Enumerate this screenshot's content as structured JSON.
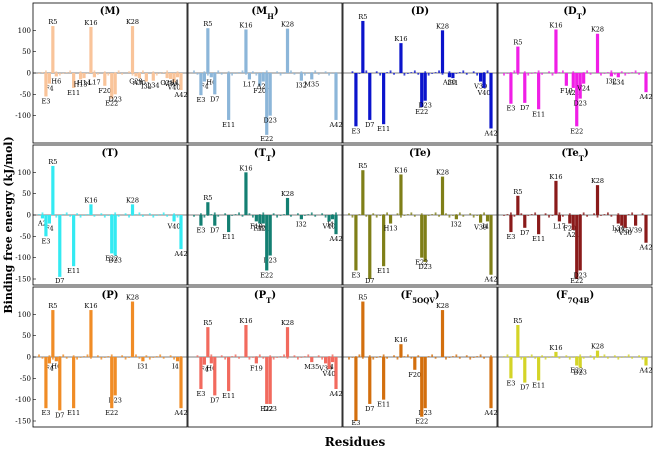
{
  "figure": {
    "ylabel": "Binding free energy (kJ/mol)",
    "xlabel": "Residues"
  },
  "chart_data": [
    {
      "type": "bar",
      "title": "(M)",
      "color": "#f9c49a",
      "ylim": [
        -150,
        150
      ],
      "yticks": [
        -100,
        -50,
        0,
        50,
        100
      ],
      "categories": [
        "F4",
        "R5",
        "H6",
        "E3",
        "E11",
        "H13",
        "H14",
        "K16",
        "L17",
        "F20",
        "E22",
        "D23",
        "K28",
        "G29",
        "A30",
        "I32",
        "L34",
        "G38",
        "V39",
        "V40",
        "I41",
        "A42"
      ],
      "values": [
        -25,
        110,
        -8,
        -55,
        -35,
        -15,
        -12,
        108,
        -10,
        -30,
        -60,
        -50,
        110,
        -8,
        -12,
        -20,
        -18,
        -12,
        -14,
        -22,
        -10,
        -40
      ],
      "labels": [
        "F4",
        "R5",
        "H6",
        "E3",
        "E11",
        "H13",
        "H14",
        "K16",
        "L17",
        "F20",
        "E22",
        "D23",
        "K28",
        "G29",
        "A30",
        "I32",
        "L34",
        "G38",
        "V39",
        "V40",
        "I41",
        "A42"
      ]
    },
    {
      "type": "bar",
      "title": "(M_H)",
      "color": "#8cb6d9",
      "ylim": [
        -150,
        150
      ],
      "yticks": [
        -150,
        -100,
        -50,
        0,
        50,
        100
      ],
      "categories": [
        "F4",
        "R5",
        "H6",
        "E3",
        "D7",
        "E11",
        "K16",
        "L17",
        "F20",
        "A21",
        "E22",
        "D23",
        "K28",
        "I32",
        "M35",
        "A42"
      ],
      "values": [
        -20,
        105,
        -10,
        -52,
        -50,
        -110,
        102,
        -15,
        -30,
        -20,
        -145,
        -100,
        104,
        -18,
        -15,
        -110
      ],
      "labels": [
        "F4",
        "R5",
        "H6",
        "E3",
        "D7",
        "E11",
        "K16",
        "L17",
        "F20",
        "A21",
        "E22",
        "D23",
        "K28",
        "I32",
        "M35",
        "A42"
      ]
    },
    {
      "type": "bar",
      "title": "(D)",
      "color": "#0b14cc",
      "ylim": [
        -150,
        150
      ],
      "yticks": [
        -150,
        -100,
        -50,
        0,
        50,
        100
      ],
      "categories": [
        "R5",
        "E3",
        "D7",
        "E11",
        "K16",
        "E22",
        "D23",
        "K28",
        "A30",
        "I31",
        "V39",
        "V40",
        "A42"
      ],
      "values": [
        122,
        -125,
        -110,
        -120,
        70,
        -80,
        -65,
        100,
        -10,
        -12,
        -20,
        -35,
        -130
      ],
      "labels": [
        "R5",
        "E3",
        "D7",
        "E11",
        "K16",
        "E22",
        "D23",
        "K28",
        "A30",
        "I31",
        "V39",
        "V40",
        "A42"
      ]
    },
    {
      "type": "bar",
      "title": "(D_T)",
      "color": "#f01ee6",
      "ylim": [
        -150,
        150
      ],
      "yticks": [
        -150,
        -100,
        -50,
        0,
        50,
        100
      ],
      "categories": [
        "R5",
        "E3",
        "D7",
        "E11",
        "K16",
        "F19",
        "A21",
        "E22",
        "D23",
        "V24",
        "K28",
        "I32",
        "L34",
        "A42"
      ],
      "values": [
        62,
        -72,
        -70,
        -85,
        102,
        -30,
        -35,
        -125,
        -60,
        -25,
        92,
        -8,
        -10,
        -45
      ],
      "labels": [
        "R5",
        "E3",
        "D7",
        "E11",
        "K16",
        "F19",
        "A21",
        "E22",
        "D23",
        "V24",
        "K28",
        "I32",
        "L34",
        "A42"
      ]
    },
    {
      "type": "bar",
      "title": "(T)",
      "color": "#33eaf2",
      "ylim": [
        -150,
        150
      ],
      "yticks": [
        -150,
        -100,
        -50,
        0,
        50,
        100
      ],
      "categories": [
        "A2",
        "R5",
        "F4",
        "E3",
        "D7",
        "E11",
        "K16",
        "E22",
        "D23",
        "K28",
        "V40",
        "A42"
      ],
      "values": [
        -8,
        115,
        -20,
        -50,
        -145,
        -120,
        25,
        -90,
        -95,
        25,
        -15,
        -80
      ],
      "labels": [
        "A2",
        "R5",
        "F4",
        "E3",
        "D7",
        "E11",
        "K16",
        "E22",
        "D23",
        "K28",
        "V40",
        "A42"
      ]
    },
    {
      "type": "bar",
      "title": "(T_T)",
      "color": "#137f72",
      "ylim": [
        -150,
        150
      ],
      "yticks": [
        -150,
        -100,
        -50,
        0,
        50,
        100
      ],
      "categories": [
        "R5",
        "E3",
        "D7",
        "E11",
        "K16",
        "F19",
        "F20",
        "A21",
        "D23",
        "E22",
        "K28",
        "I32",
        "V40",
        "I41",
        "A42"
      ],
      "values": [
        30,
        -25,
        -25,
        -40,
        100,
        -15,
        -20,
        -20,
        -95,
        -130,
        40,
        -10,
        -15,
        -10,
        -45
      ],
      "labels": [
        "R5",
        "E3",
        "D7",
        "E11",
        "K16",
        "F19",
        "F20",
        "A21",
        "D23",
        "E22",
        "K28",
        "I32",
        "V40",
        "I41",
        "A42"
      ]
    },
    {
      "type": "bar",
      "title": "(Te)",
      "color": "#7f7f18",
      "ylim": [
        -150,
        150
      ],
      "yticks": [
        -150,
        -100,
        -50,
        0,
        50,
        100
      ],
      "categories": [
        "R5",
        "E3",
        "D7",
        "E11",
        "H13",
        "K16",
        "D23",
        "E22",
        "K28",
        "I32",
        "V39",
        "I41",
        "A42"
      ],
      "values": [
        105,
        -130,
        -150,
        -120,
        -20,
        95,
        -110,
        -100,
        90,
        -10,
        -18,
        -15,
        -140
      ],
      "labels": [
        "R5",
        "E3",
        "D7",
        "E11",
        "H13",
        "K16",
        "D23",
        "E22",
        "K28",
        "I32",
        "V39",
        "I41",
        "A42"
      ]
    },
    {
      "type": "bar",
      "title": "(Te_T)",
      "color": "#8a1a1a",
      "ylim": [
        -150,
        150
      ],
      "yticks": [
        -150,
        -100,
        -50,
        0,
        50,
        100
      ],
      "categories": [
        "R5",
        "E3",
        "D7",
        "E11",
        "K16",
        "L17",
        "F20",
        "A21",
        "E22",
        "D23",
        "K28",
        "L34",
        "M35",
        "V36",
        "V39",
        "A42"
      ],
      "values": [
        45,
        -40,
        -30,
        -45,
        80,
        -15,
        -20,
        -35,
        -150,
        -130,
        70,
        -20,
        -25,
        -30,
        -25,
        -65
      ],
      "labels": [
        "R5",
        "E3",
        "D7",
        "E11",
        "K16",
        "L17",
        "F20",
        "A21",
        "E22",
        "D23",
        "K28",
        "L34",
        "M35",
        "V36",
        "V39",
        "A42"
      ]
    },
    {
      "type": "bar",
      "title": "(P)",
      "color": "#f08c26",
      "ylim": [
        -150,
        150
      ],
      "yticks": [
        -150,
        -100,
        -50,
        0,
        50,
        100
      ],
      "categories": [
        "F4",
        "R5",
        "H6",
        "E3",
        "D7",
        "E11",
        "K16",
        "D23",
        "E22",
        "K28",
        "I31",
        "I41",
        "A42"
      ],
      "values": [
        -15,
        110,
        -10,
        -120,
        -125,
        -120,
        110,
        -90,
        -120,
        130,
        -10,
        -10,
        -120
      ],
      "labels": [
        "F4",
        "R5",
        "H6",
        "E3",
        "D7",
        "E11",
        "K16",
        "D23",
        "E22",
        "K28",
        "I31",
        "I41",
        "A42"
      ]
    },
    {
      "type": "bar",
      "title": "(P_T)",
      "color": "#f26a5e",
      "ylim": [
        -150,
        150
      ],
      "yticks": [
        -150,
        -100,
        -50,
        0,
        50,
        100
      ],
      "categories": [
        "R5",
        "F4",
        "H6",
        "E3",
        "D7",
        "E11",
        "K16",
        "F19",
        "E22",
        "D23",
        "K28",
        "M35",
        "V39",
        "I41",
        "V40",
        "A42"
      ],
      "values": [
        70,
        -18,
        -15,
        -75,
        -90,
        -80,
        75,
        -15,
        -110,
        -110,
        70,
        -12,
        -15,
        -12,
        -28,
        -75
      ],
      "labels": [
        "R5",
        "F4",
        "H6",
        "E3",
        "D7",
        "E11",
        "K16",
        "F19",
        "E22",
        "D23",
        "K28",
        "M35",
        "V39",
        "I41",
        "V40",
        "A42"
      ]
    },
    {
      "type": "bar",
      "title": "(F_5OQV)",
      "color": "#d36f0e",
      "ylim": [
        -150,
        150
      ],
      "yticks": [
        -150,
        -100,
        -50,
        0,
        50,
        100
      ],
      "categories": [
        "E3",
        "R5",
        "D7",
        "E11",
        "K16",
        "F20",
        "D23",
        "E22",
        "K28",
        "A42"
      ],
      "values": [
        -150,
        130,
        -110,
        -100,
        30,
        -30,
        -120,
        -140,
        110,
        -120
      ],
      "labels": [
        "E3",
        "R5",
        "D7",
        "E11",
        "K16",
        "F20",
        "D23",
        "E22",
        "K28",
        "A42"
      ]
    },
    {
      "type": "bar",
      "title": "(F_7Q4B)",
      "color": "#d4d427",
      "ylim": [
        -150,
        150
      ],
      "yticks": [
        -150,
        -100,
        -50,
        0,
        50,
        100
      ],
      "categories": [
        "R5",
        "E3",
        "D7",
        "E11",
        "K16",
        "E22",
        "D23",
        "K28",
        "A42"
      ],
      "values": [
        75,
        -50,
        -60,
        -55,
        12,
        -20,
        -25,
        15,
        -20
      ],
      "labels": [
        "R5",
        "E3",
        "D7",
        "E11",
        "K16",
        "E22",
        "D23",
        "K28",
        "A42"
      ]
    }
  ]
}
